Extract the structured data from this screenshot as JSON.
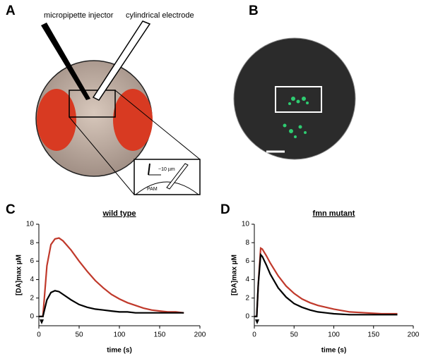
{
  "panels": {
    "a": {
      "label": "A",
      "injector": "micropipette injector",
      "electrode": "cylindrical electrode",
      "distance": "~10 µm",
      "region": "PAM"
    },
    "b": {
      "label": "B"
    }
  },
  "chart_data": [
    {
      "type": "line",
      "panel_label": "C",
      "title": "wild type",
      "xlabel": "time (s)",
      "ylabel": "[DA]max µM",
      "x": [
        0,
        5,
        10,
        15,
        20,
        25,
        30,
        40,
        50,
        60,
        70,
        80,
        90,
        100,
        110,
        120,
        130,
        140,
        150,
        160,
        170,
        180
      ],
      "series": [
        {
          "color": "#c0392b",
          "values": [
            0,
            0,
            5.5,
            7.8,
            8.4,
            8.5,
            8.2,
            7.2,
            6.0,
            4.9,
            3.9,
            3.1,
            2.4,
            1.9,
            1.5,
            1.2,
            0.9,
            0.7,
            0.6,
            0.5,
            0.5,
            0.4
          ]
        },
        {
          "color": "#000000",
          "values": [
            0,
            0,
            1.8,
            2.6,
            2.8,
            2.7,
            2.4,
            1.8,
            1.3,
            1.0,
            0.8,
            0.7,
            0.6,
            0.5,
            0.5,
            0.4,
            0.4,
            0.4,
            0.4,
            0.4,
            0.4,
            0.4
          ]
        }
      ],
      "xlim": [
        0,
        200
      ],
      "ylim": [
        -1,
        10
      ],
      "xticks": [
        0,
        50,
        100,
        150,
        200
      ],
      "yticks": [
        0,
        2,
        4,
        6,
        8,
        10
      ]
    },
    {
      "type": "line",
      "panel_label": "D",
      "title": "fmn mutant",
      "xlabel": "time (s)",
      "ylabel": "[DA]max µM",
      "x": [
        0,
        3,
        5,
        8,
        10,
        15,
        20,
        30,
        40,
        50,
        60,
        70,
        80,
        90,
        100,
        120,
        140,
        160,
        180
      ],
      "series": [
        {
          "color": "#c0392b",
          "values": [
            0,
            0,
            3.5,
            7.4,
            7.3,
            6.6,
            5.8,
            4.4,
            3.3,
            2.5,
            1.9,
            1.5,
            1.2,
            1.0,
            0.8,
            0.5,
            0.4,
            0.3,
            0.3
          ]
        },
        {
          "color": "#000000",
          "values": [
            0,
            0,
            3.5,
            6.7,
            6.5,
            5.6,
            4.6,
            3.1,
            2.1,
            1.4,
            1.0,
            0.7,
            0.5,
            0.4,
            0.3,
            0.2,
            0.2,
            0.2,
            0.2
          ]
        }
      ],
      "xlim": [
        0,
        200
      ],
      "ylim": [
        -1,
        10
      ],
      "xticks": [
        0,
        50,
        100,
        150,
        200
      ],
      "yticks": [
        0,
        2,
        4,
        6,
        8,
        10
      ]
    }
  ]
}
